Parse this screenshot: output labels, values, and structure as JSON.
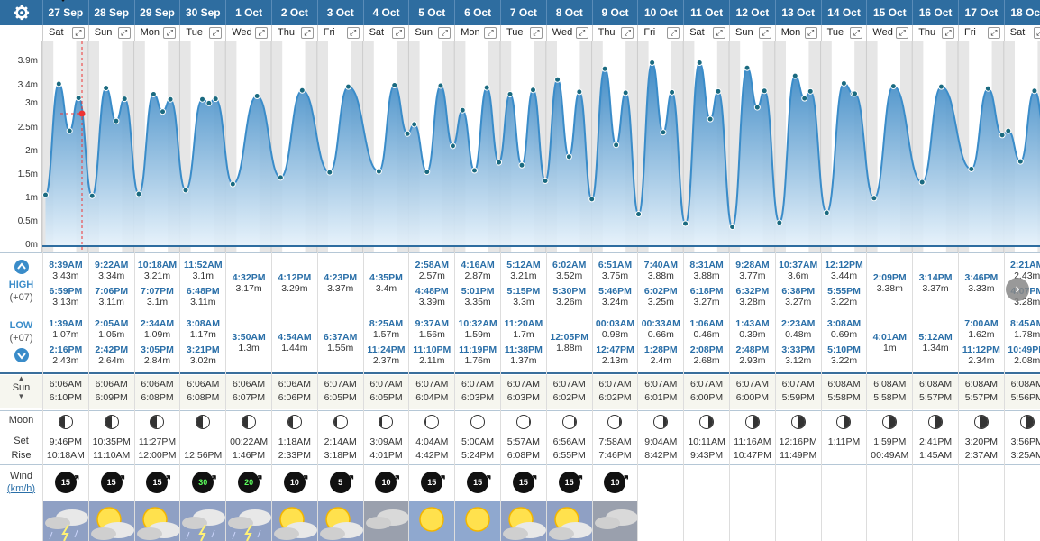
{
  "colors": {
    "header": "#2e6da0",
    "tide": "#3a8cc9",
    "tide_light": "#c9e2f4",
    "time_text": "#2a6fa8"
  },
  "chart_data": {
    "type": "area",
    "title": "",
    "ylabel": "",
    "yticks": [
      "3.9m",
      "3.4m",
      "3m",
      "2.5m",
      "2m",
      "1.5m",
      "1m",
      "0.5m",
      "0m"
    ],
    "ylim": [
      0,
      4.1
    ],
    "unit": "m",
    "extremes": [
      {
        "day": 0,
        "time": "1:39AM",
        "h": 1.07
      },
      {
        "day": 0,
        "time": "8:39AM",
        "h": 3.43
      },
      {
        "day": 0,
        "time": "2:16PM",
        "h": 2.43
      },
      {
        "day": 0,
        "time": "6:59PM",
        "h": 3.13
      },
      {
        "day": 1,
        "time": "2:05AM",
        "h": 1.05
      },
      {
        "day": 1,
        "time": "9:22AM",
        "h": 3.34
      },
      {
        "day": 1,
        "time": "2:42PM",
        "h": 2.64
      },
      {
        "day": 1,
        "time": "7:06PM",
        "h": 3.11
      },
      {
        "day": 2,
        "time": "2:34AM",
        "h": 1.09
      },
      {
        "day": 2,
        "time": "10:18AM",
        "h": 3.21
      },
      {
        "day": 2,
        "time": "3:05PM",
        "h": 2.84
      },
      {
        "day": 2,
        "time": "7:07PM",
        "h": 3.1
      },
      {
        "day": 3,
        "time": "3:08AM",
        "h": 1.17
      },
      {
        "day": 3,
        "time": "11:52AM",
        "h": 3.1
      },
      {
        "day": 3,
        "time": "3:21PM",
        "h": 3.02
      },
      {
        "day": 3,
        "time": "6:48PM",
        "h": 3.11
      },
      {
        "day": 4,
        "time": "3:50AM",
        "h": 1.3
      },
      {
        "day": 4,
        "time": "4:32PM",
        "h": 3.17
      },
      {
        "day": 5,
        "time": "4:54AM",
        "h": 1.44
      },
      {
        "day": 5,
        "time": "4:12PM",
        "h": 3.29
      },
      {
        "day": 6,
        "time": "6:37AM",
        "h": 1.55
      },
      {
        "day": 6,
        "time": "4:23PM",
        "h": 3.37
      },
      {
        "day": 7,
        "time": "8:25AM",
        "h": 1.57
      },
      {
        "day": 7,
        "time": "4:35PM",
        "h": 3.4
      },
      {
        "day": 7,
        "time": "11:24PM",
        "h": 2.37
      },
      {
        "day": 8,
        "time": "2:58AM",
        "h": 2.57
      },
      {
        "day": 8,
        "time": "9:37AM",
        "h": 1.56
      },
      {
        "day": 8,
        "time": "4:48PM",
        "h": 3.39
      },
      {
        "day": 8,
        "time": "11:10PM",
        "h": 2.11
      },
      {
        "day": 9,
        "time": "4:16AM",
        "h": 2.87
      },
      {
        "day": 9,
        "time": "10:32AM",
        "h": 1.59
      },
      {
        "day": 9,
        "time": "5:01PM",
        "h": 3.35
      },
      {
        "day": 9,
        "time": "11:19PM",
        "h": 1.76
      },
      {
        "day": 10,
        "time": "5:12AM",
        "h": 3.21
      },
      {
        "day": 10,
        "time": "11:20AM",
        "h": 1.7
      },
      {
        "day": 10,
        "time": "5:15PM",
        "h": 3.3
      },
      {
        "day": 10,
        "time": "11:38PM",
        "h": 1.37
      },
      {
        "day": 11,
        "time": "6:02AM",
        "h": 3.52
      },
      {
        "day": 11,
        "time": "12:05PM",
        "h": 1.88
      },
      {
        "day": 11,
        "time": "5:30PM",
        "h": 3.26
      },
      {
        "day": 12,
        "time": "00:03AM",
        "h": 0.98
      },
      {
        "day": 12,
        "time": "6:51AM",
        "h": 3.75
      },
      {
        "day": 12,
        "time": "12:47PM",
        "h": 2.13
      },
      {
        "day": 12,
        "time": "5:46PM",
        "h": 3.24
      },
      {
        "day": 13,
        "time": "00:33AM",
        "h": 0.66
      },
      {
        "day": 13,
        "time": "7:40AM",
        "h": 3.88
      },
      {
        "day": 13,
        "time": "1:28PM",
        "h": 2.4
      },
      {
        "day": 13,
        "time": "6:02PM",
        "h": 3.25
      },
      {
        "day": 14,
        "time": "1:06AM",
        "h": 0.46
      },
      {
        "day": 14,
        "time": "8:31AM",
        "h": 3.88
      },
      {
        "day": 14,
        "time": "2:08PM",
        "h": 2.68
      },
      {
        "day": 14,
        "time": "6:18PM",
        "h": 3.27
      },
      {
        "day": 15,
        "time": "1:43AM",
        "h": 0.39
      },
      {
        "day": 15,
        "time": "9:28AM",
        "h": 3.77
      },
      {
        "day": 15,
        "time": "2:48PM",
        "h": 2.93
      },
      {
        "day": 15,
        "time": "6:32PM",
        "h": 3.28
      },
      {
        "day": 16,
        "time": "2:23AM",
        "h": 0.48
      },
      {
        "day": 16,
        "time": "10:37AM",
        "h": 3.6
      },
      {
        "day": 16,
        "time": "3:33PM",
        "h": 3.12
      },
      {
        "day": 16,
        "time": "6:38PM",
        "h": 3.27
      },
      {
        "day": 17,
        "time": "3:08AM",
        "h": 0.69
      },
      {
        "day": 17,
        "time": "12:12PM",
        "h": 3.44
      },
      {
        "day": 17,
        "time": "5:10PM",
        "h": 3.22
      },
      {
        "day": 17,
        "time": "5:55PM",
        "h": 3.22
      },
      {
        "day": 18,
        "time": "4:01AM",
        "h": 1
      },
      {
        "day": 18,
        "time": "2:09PM",
        "h": 3.38
      },
      {
        "day": 19,
        "time": "5:12AM",
        "h": 1.34
      },
      {
        "day": 19,
        "time": "3:14PM",
        "h": 3.37
      },
      {
        "day": 20,
        "time": "7:00AM",
        "h": 1.62
      },
      {
        "day": 20,
        "time": "3:46PM",
        "h": 3.33
      },
      {
        "day": 20,
        "time": "11:12PM",
        "h": 2.34
      },
      {
        "day": 21,
        "time": "2:21AM",
        "h": 2.43
      },
      {
        "day": 21,
        "time": "8:45AM",
        "h": 1.78
      },
      {
        "day": 21,
        "time": "4:07PM",
        "h": 3.28
      },
      {
        "day": 21,
        "time": "10:49PM",
        "h": 2.08
      }
    ]
  },
  "left": {
    "high_label": "HIGH",
    "high_tz": "(+07)",
    "low_label": "LOW",
    "low_tz": "(+07)",
    "sun_label": "Sun",
    "moon_label": "Moon",
    "set_label": "Set",
    "rise_label": "Rise",
    "wind_label": "Wind",
    "wind_unit": "km/h"
  },
  "days": [
    {
      "date": "27 Sep",
      "wd": "Sat",
      "high": [
        [
          "8:39AM",
          "3.43m"
        ],
        [
          "6:59PM",
          "3.13m"
        ]
      ],
      "low": [
        [
          "1:39AM",
          "1.07m"
        ],
        [
          "2:16PM",
          "2.43m"
        ]
      ],
      "sun": [
        "6:06AM",
        "6:10PM"
      ],
      "moon": [
        "9:46PM",
        "10:18AM"
      ],
      "phase": 0.45,
      "wind": "15",
      "wx": "storm"
    },
    {
      "date": "28 Sep",
      "wd": "Sun",
      "high": [
        [
          "9:22AM",
          "3.34m"
        ],
        [
          "7:06PM",
          "3.11m"
        ]
      ],
      "low": [
        [
          "2:05AM",
          "1.05m"
        ],
        [
          "2:42PM",
          "2.64m"
        ]
      ],
      "sun": [
        "6:06AM",
        "6:09PM"
      ],
      "moon": [
        "10:35PM",
        "11:10AM"
      ],
      "phase": 0.5,
      "wind": "15",
      "wx": "suncloud"
    },
    {
      "date": "29 Sep",
      "wd": "Mon",
      "high": [
        [
          "10:18AM",
          "3.21m"
        ],
        [
          "7:07PM",
          "3.1m"
        ]
      ],
      "low": [
        [
          "2:34AM",
          "1.09m"
        ],
        [
          "3:05PM",
          "2.84m"
        ]
      ],
      "sun": [
        "6:06AM",
        "6:08PM"
      ],
      "moon": [
        "11:27PM",
        "12:00PM"
      ],
      "phase": 0.5,
      "wind": "15",
      "wx": "suncloud"
    },
    {
      "date": "30 Sep",
      "wd": "Tue",
      "high": [
        [
          "11:52AM",
          "3.1m"
        ],
        [
          "6:48PM",
          "3.11m"
        ]
      ],
      "low": [
        [
          "3:08AM",
          "1.17m"
        ],
        [
          "3:21PM",
          "3.02m"
        ]
      ],
      "sun": [
        "6:06AM",
        "6:08PM"
      ],
      "moon": [
        "",
        "12:56PM"
      ],
      "phase": 0.45,
      "wind": "30",
      "wx": "storm"
    },
    {
      "date": "1 Oct",
      "wd": "Wed",
      "high": [
        [
          "4:32PM",
          "3.17m"
        ]
      ],
      "low": [
        [
          "3:50AM",
          "1.3m"
        ]
      ],
      "sun": [
        "6:06AM",
        "6:07PM"
      ],
      "moon": [
        "00:22AM",
        "1:46PM"
      ],
      "phase": 0.4,
      "wind": "20",
      "wx": "storm"
    },
    {
      "date": "2 Oct",
      "wd": "Thu",
      "high": [
        [
          "4:12PM",
          "3.29m"
        ]
      ],
      "low": [
        [
          "4:54AM",
          "1.44m"
        ]
      ],
      "sun": [
        "6:06AM",
        "6:06PM"
      ],
      "moon": [
        "1:18AM",
        "2:33PM"
      ],
      "phase": 0.35,
      "wind": "10",
      "wx": "suncloud"
    },
    {
      "date": "3 Oct",
      "wd": "Fri",
      "high": [
        [
          "4:23PM",
          "3.37m"
        ]
      ],
      "low": [
        [
          "6:37AM",
          "1.55m"
        ]
      ],
      "sun": [
        "6:07AM",
        "6:05PM"
      ],
      "moon": [
        "2:14AM",
        "3:18PM"
      ],
      "phase": 0.25,
      "wind": "5",
      "wx": "suncloud"
    },
    {
      "date": "4 Oct",
      "wd": "Sat",
      "high": [
        [
          "4:35PM",
          "3.4m"
        ]
      ],
      "low": [
        [
          "8:25AM",
          "1.57m"
        ],
        [
          "11:24PM",
          "2.37m"
        ]
      ],
      "sun": [
        "6:07AM",
        "6:05PM"
      ],
      "moon": [
        "3:09AM",
        "4:01PM"
      ],
      "phase": 0.15,
      "wind": "10",
      "wx": "cloud"
    },
    {
      "date": "5 Oct",
      "wd": "Sun",
      "high": [
        [
          "2:58AM",
          "2.57m"
        ],
        [
          "4:48PM",
          "3.39m"
        ]
      ],
      "low": [
        [
          "9:37AM",
          "1.56m"
        ],
        [
          "11:10PM",
          "2.11m"
        ]
      ],
      "sun": [
        "6:07AM",
        "6:04PM"
      ],
      "moon": [
        "4:04AM",
        "4:42PM"
      ],
      "phase": 0.05,
      "wind": "15",
      "wx": "sun"
    },
    {
      "date": "6 Oct",
      "wd": "Mon",
      "high": [
        [
          "4:16AM",
          "2.87m"
        ],
        [
          "5:01PM",
          "3.35m"
        ]
      ],
      "low": [
        [
          "10:32AM",
          "1.59m"
        ],
        [
          "11:19PM",
          "1.76m"
        ]
      ],
      "sun": [
        "6:07AM",
        "6:03PM"
      ],
      "moon": [
        "5:00AM",
        "5:24PM"
      ],
      "phase": 0,
      "wind": "15",
      "wx": "sun"
    },
    {
      "date": "7 Oct",
      "wd": "Tue",
      "high": [
        [
          "5:12AM",
          "3.21m"
        ],
        [
          "5:15PM",
          "3.3m"
        ]
      ],
      "low": [
        [
          "11:20AM",
          "1.7m"
        ],
        [
          "11:38PM",
          "1.37m"
        ]
      ],
      "sun": [
        "6:07AM",
        "6:03PM"
      ],
      "moon": [
        "5:57AM",
        "6:08PM"
      ],
      "phase": 0.05,
      "wind": "15",
      "wx": "suncloud"
    },
    {
      "date": "8 Oct",
      "wd": "Wed",
      "high": [
        [
          "6:02AM",
          "3.52m"
        ],
        [
          "5:30PM",
          "3.26m"
        ]
      ],
      "low": [
        [
          "12:05PM",
          "1.88m"
        ]
      ],
      "sun": [
        "6:07AM",
        "6:02PM"
      ],
      "moon": [
        "6:56AM",
        "6:55PM"
      ],
      "phase": 0.1,
      "wind": "15",
      "wx": "suncloud"
    },
    {
      "date": "9 Oct",
      "wd": "Thu",
      "high": [
        [
          "6:51AM",
          "3.75m"
        ],
        [
          "5:46PM",
          "3.24m"
        ]
      ],
      "low": [
        [
          "00:03AM",
          "0.98m"
        ],
        [
          "12:47PM",
          "2.13m"
        ]
      ],
      "sun": [
        "6:07AM",
        "6:02PM"
      ],
      "moon": [
        "7:58AM",
        "7:46PM"
      ],
      "phase": 0.2,
      "wind": "10",
      "wx": "cloud"
    },
    {
      "date": "10 Oct",
      "wd": "Fri",
      "high": [
        [
          "7:40AM",
          "3.88m"
        ],
        [
          "6:02PM",
          "3.25m"
        ]
      ],
      "low": [
        [
          "00:33AM",
          "0.66m"
        ],
        [
          "1:28PM",
          "2.4m"
        ]
      ],
      "sun": [
        "6:07AM",
        "6:01PM"
      ],
      "moon": [
        "9:04AM",
        "8:42PM"
      ],
      "phase": 0.3,
      "wind": "",
      "wx": ""
    },
    {
      "date": "11 Oct",
      "wd": "Sat",
      "high": [
        [
          "8:31AM",
          "3.88m"
        ],
        [
          "6:18PM",
          "3.27m"
        ]
      ],
      "low": [
        [
          "1:06AM",
          "0.46m"
        ],
        [
          "2:08PM",
          "2.68m"
        ]
      ],
      "sun": [
        "6:07AM",
        "6:00PM"
      ],
      "moon": [
        "10:11AM",
        "9:43PM"
      ],
      "phase": 0.38,
      "wind": "",
      "wx": ""
    },
    {
      "date": "12 Oct",
      "wd": "Sun",
      "high": [
        [
          "9:28AM",
          "3.77m"
        ],
        [
          "6:32PM",
          "3.28m"
        ]
      ],
      "low": [
        [
          "1:43AM",
          "0.39m"
        ],
        [
          "2:48PM",
          "2.93m"
        ]
      ],
      "sun": [
        "6:07AM",
        "6:00PM"
      ],
      "moon": [
        "11:16AM",
        "10:47PM"
      ],
      "phase": 0.45,
      "wind": "",
      "wx": ""
    },
    {
      "date": "13 Oct",
      "wd": "Mon",
      "high": [
        [
          "10:37AM",
          "3.6m"
        ],
        [
          "6:38PM",
          "3.27m"
        ]
      ],
      "low": [
        [
          "2:23AM",
          "0.48m"
        ],
        [
          "3:33PM",
          "3.12m"
        ]
      ],
      "sun": [
        "6:07AM",
        "5:59PM"
      ],
      "moon": [
        "12:16PM",
        "11:49PM"
      ],
      "phase": 0.5,
      "wind": "",
      "wx": ""
    },
    {
      "date": "14 Oct",
      "wd": "Tue",
      "high": [
        [
          "12:12PM",
          "3.44m"
        ],
        [
          "5:55PM",
          "3.22m"
        ]
      ],
      "low": [
        [
          "3:08AM",
          "0.69m"
        ],
        [
          "5:10PM",
          "3.22m"
        ]
      ],
      "sun": [
        "6:08AM",
        "5:58PM"
      ],
      "moon": [
        "1:11PM",
        ""
      ],
      "phase": 0.5,
      "wind": "",
      "wx": ""
    },
    {
      "date": "15 Oct",
      "wd": "Wed",
      "high": [
        [
          "2:09PM",
          "3.38m"
        ]
      ],
      "low": [
        [
          "4:01AM",
          "1m"
        ]
      ],
      "sun": [
        "6:08AM",
        "5:58PM"
      ],
      "moon": [
        "1:59PM",
        "00:49AM"
      ],
      "phase": 0.5,
      "wind": "",
      "wx": ""
    },
    {
      "date": "16 Oct",
      "wd": "Thu",
      "high": [
        [
          "3:14PM",
          "3.37m"
        ]
      ],
      "low": [
        [
          "5:12AM",
          "1.34m"
        ]
      ],
      "sun": [
        "6:08AM",
        "5:57PM"
      ],
      "moon": [
        "2:41PM",
        "1:45AM"
      ],
      "phase": 0.55,
      "wind": "",
      "wx": ""
    },
    {
      "date": "17 Oct",
      "wd": "Fri",
      "high": [
        [
          "3:46PM",
          "3.33m"
        ]
      ],
      "low": [
        [
          "7:00AM",
          "1.62m"
        ],
        [
          "11:12PM",
          "2.34m"
        ]
      ],
      "sun": [
        "6:08AM",
        "5:57PM"
      ],
      "moon": [
        "3:20PM",
        "2:37AM"
      ],
      "phase": 0.6,
      "wind": "",
      "wx": ""
    },
    {
      "date": "18 Oct",
      "wd": "Sat",
      "high": [
        [
          "2:21AM",
          "2.43m"
        ],
        [
          "4:07PM",
          "3.28m"
        ]
      ],
      "low": [
        [
          "8:45AM",
          "1.78m"
        ],
        [
          "10:49PM",
          "2.08m"
        ]
      ],
      "sun": [
        "6:08AM",
        "5:56PM"
      ],
      "moon": [
        "3:56PM",
        "3:25AM"
      ],
      "phase": 0.65,
      "wind": "",
      "wx": ""
    }
  ]
}
